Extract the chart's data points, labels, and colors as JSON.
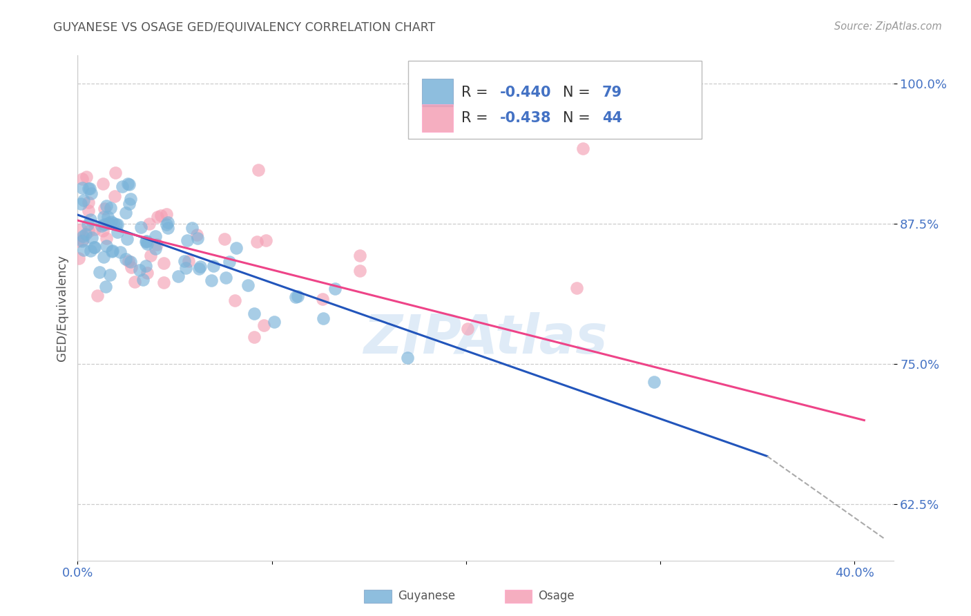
{
  "title": "GUYANESE VS OSAGE GED/EQUIVALENCY CORRELATION CHART",
  "source": "Source: ZipAtlas.com",
  "ylabel": "GED/Equivalency",
  "xlim": [
    0.0,
    0.42
  ],
  "ylim": [
    0.575,
    1.025
  ],
  "yticks": [
    0.625,
    0.75,
    0.875,
    1.0
  ],
  "ytick_labels": [
    "62.5%",
    "75.0%",
    "87.5%",
    "100.0%"
  ],
  "xticks": [
    0.0,
    0.1,
    0.2,
    0.3,
    0.4
  ],
  "xtick_labels": [
    "0.0%",
    "",
    "",
    "",
    "40.0%"
  ],
  "background_color": "#ffffff",
  "grid_color": "#cccccc",
  "title_color": "#555555",
  "axis_label_color": "#555555",
  "tick_color": "#4472c4",
  "guyanese_color": "#7ab3d9",
  "osage_color": "#f4a0b5",
  "blue_line_color": "#2255bb",
  "pink_line_color": "#ee4488",
  "dashed_line_color": "#aaaaaa",
  "blue_line_x": [
    0.0,
    0.355
  ],
  "blue_line_y": [
    0.883,
    0.668
  ],
  "pink_line_x": [
    0.0,
    0.405
  ],
  "pink_line_y": [
    0.878,
    0.7
  ],
  "dashed_line_x": [
    0.355,
    0.415
  ],
  "dashed_line_y": [
    0.668,
    0.595
  ]
}
